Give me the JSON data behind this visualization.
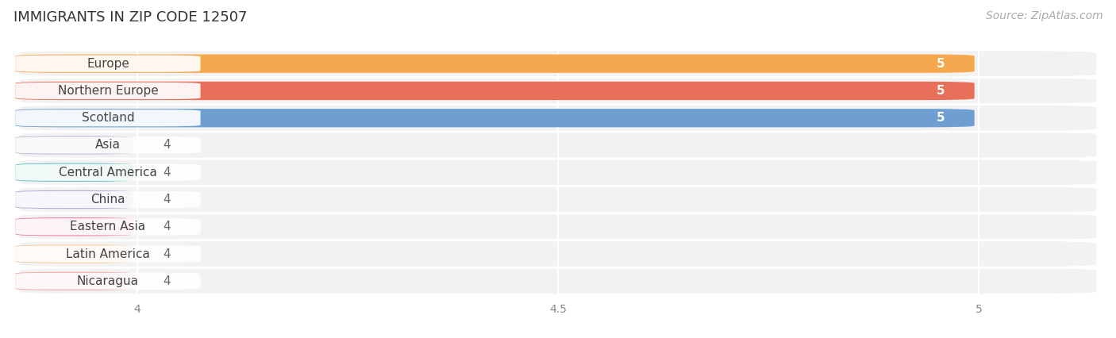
{
  "title": "IMMIGRANTS IN ZIP CODE 12507",
  "source": "Source: ZipAtlas.com",
  "categories": [
    "Europe",
    "Northern Europe",
    "Scotland",
    "Asia",
    "Central America",
    "China",
    "Eastern Asia",
    "Latin America",
    "Nicaragua"
  ],
  "values": [
    5,
    5,
    5,
    4,
    4,
    4,
    4,
    4,
    4
  ],
  "bar_colors": [
    "#F5A84E",
    "#E8705A",
    "#6E9FD0",
    "#C0B4D0",
    "#5BBFB5",
    "#A8A8D8",
    "#F07A9A",
    "#F5C898",
    "#F0A0A0"
  ],
  "xlim_left": 3.85,
  "xlim_right": 5.15,
  "xticks": [
    4,
    4.5,
    5
  ],
  "title_fontsize": 13,
  "source_fontsize": 10,
  "label_fontsize": 11,
  "value_label_fontsize": 11,
  "background_color": "#ffffff",
  "row_bg_color": "#F2F2F2",
  "grid_color": "#ffffff"
}
